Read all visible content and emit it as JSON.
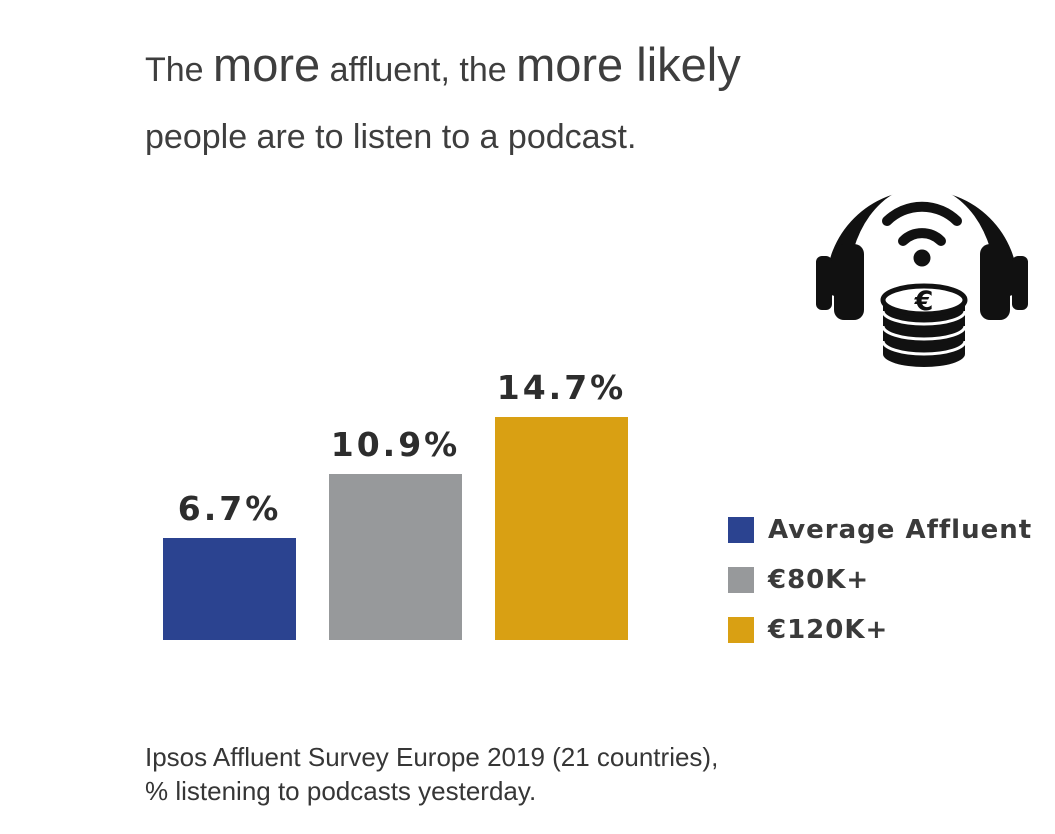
{
  "title": {
    "seg1": "The ",
    "seg2": "more",
    "seg3": " affluent, the ",
    "seg4": "more likely",
    "line2": "people are to listen to a podcast."
  },
  "chart_data": {
    "type": "bar",
    "categories": [
      "Average Affluent",
      "€80K+",
      "€120K+"
    ],
    "values": [
      6.7,
      10.9,
      14.7
    ],
    "value_labels": [
      "6.7%",
      "10.9%",
      "14.7%"
    ],
    "colors": [
      "#2b4390",
      "#97999b",
      "#d9a013"
    ],
    "title": "The more affluent, the more likely people are to listen to a podcast.",
    "xlabel": "",
    "ylabel": "",
    "ylim": [
      0,
      16
    ],
    "grid": false,
    "legend_position": "right",
    "source": "Ipsos Affluent Survey Europe 2019 (21 countries), % listening to podcasts yesterday."
  },
  "legend": {
    "items": [
      {
        "label": "Average Affluent",
        "color": "#2b4390"
      },
      {
        "label": "€80K+",
        "color": "#97999b"
      },
      {
        "label": "€120K+",
        "color": "#d9a013"
      }
    ]
  },
  "source": {
    "line1": "Ipsos Affluent Survey Europe 2019 (21 countries),",
    "line2": "% listening to podcasts yesterday."
  },
  "icon": {
    "name": "headphones-podcast-money-icon"
  }
}
